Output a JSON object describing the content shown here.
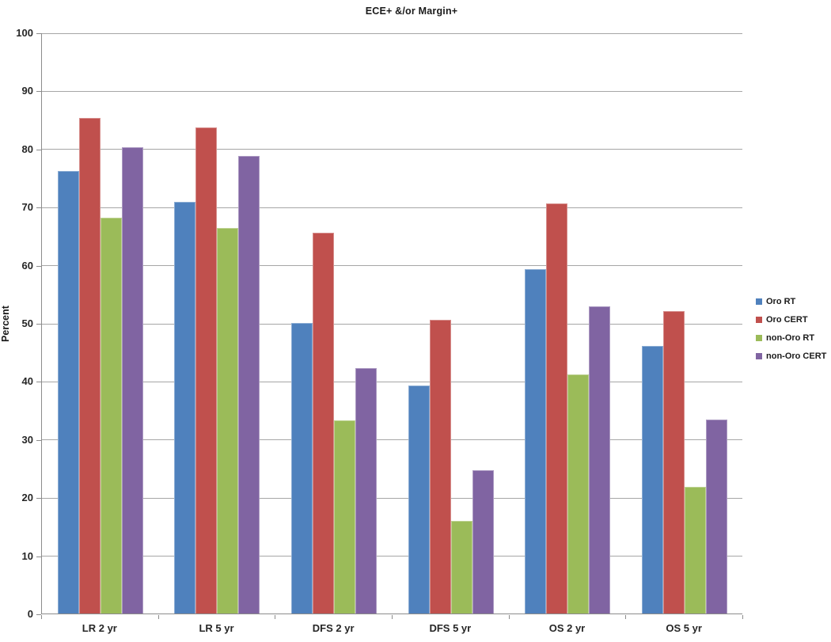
{
  "chart_data": {
    "type": "bar",
    "title": "ECE+ &/or Margin+",
    "xlabel": "",
    "ylabel": "Percent",
    "ylim": [
      0,
      100
    ],
    "yticks": [
      0,
      10,
      20,
      30,
      40,
      50,
      60,
      70,
      80,
      90,
      100
    ],
    "grid": true,
    "legend_position": "right",
    "categories": [
      "LR 2 yr",
      "LR 5 yr",
      "DFS 2 yr",
      "DFS 5 yr",
      "OS 2 yr",
      "OS 5 yr"
    ],
    "series": [
      {
        "name": "Oro RT",
        "color": "#4F81BD",
        "values": [
          76.1,
          70.8,
          50.0,
          39.2,
          59.3,
          46.0
        ]
      },
      {
        "name": "Oro CERT",
        "color": "#C0504D",
        "values": [
          85.3,
          83.6,
          65.5,
          50.5,
          70.6,
          52.0
        ]
      },
      {
        "name": "non-Oro RT",
        "color": "#9BBB59",
        "values": [
          68.1,
          66.4,
          33.2,
          16.0,
          41.2,
          21.8
        ]
      },
      {
        "name": "non-Oro CERT",
        "color": "#8064A2",
        "values": [
          80.2,
          78.7,
          42.2,
          24.6,
          52.8,
          33.4
        ]
      }
    ],
    "accent_colors": {
      "gridline": "#A6A6A6",
      "axis": "#8C8C8C",
      "text": "#262626"
    }
  }
}
